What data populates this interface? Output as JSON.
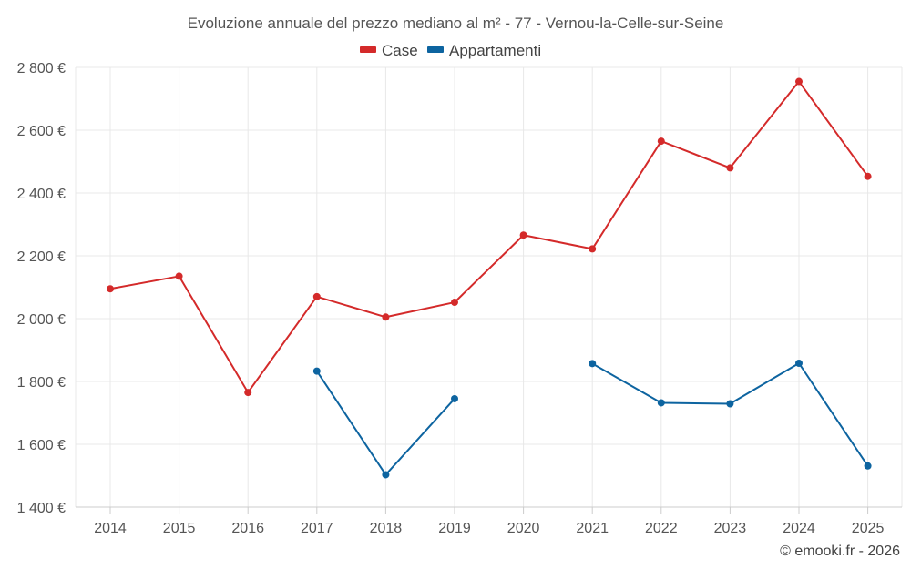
{
  "chart_data": {
    "type": "line",
    "title": "Evoluzione annuale del prezzo mediano al m² - 77 - Vernou-la-Celle-sur-Seine",
    "categories": [
      "2014",
      "2015",
      "2016",
      "2017",
      "2018",
      "2019",
      "2020",
      "2021",
      "2022",
      "2023",
      "2024",
      "2025"
    ],
    "y_ticks": [
      1400,
      1600,
      1800,
      2000,
      2200,
      2400,
      2600,
      2800
    ],
    "y_tick_labels": [
      "1 400 €",
      "1 600 €",
      "1 800 €",
      "2 000 €",
      "2 200 €",
      "2 400 €",
      "2 600 €",
      "2 800 €"
    ],
    "ylim": [
      1400,
      2800
    ],
    "grid": true,
    "legend_position": "top-center",
    "series": [
      {
        "name": "Case",
        "color": "#d42a2a",
        "values": [
          2095,
          2135,
          1765,
          2070,
          2005,
          2052,
          2266,
          2222,
          2565,
          2480,
          2755,
          2453
        ]
      },
      {
        "name": "Appartamenti",
        "color": "#0d64a0",
        "values": [
          null,
          null,
          null,
          1833,
          1503,
          1745,
          null,
          1857,
          1732,
          1729,
          1858,
          1531
        ]
      }
    ]
  },
  "credit": "© emooki.fr - 2026"
}
